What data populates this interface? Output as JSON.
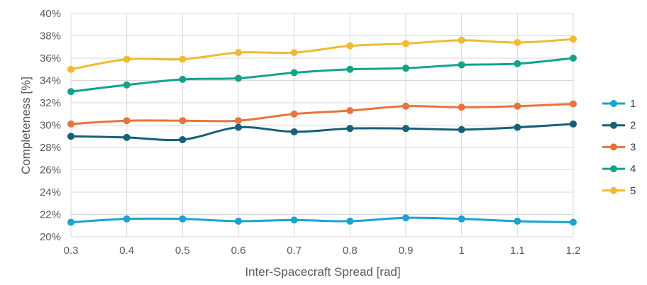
{
  "chart_data": {
    "type": "line",
    "title": "",
    "xlabel": "Inter-Spacecraft Spread [rad]",
    "ylabel": "Completeness [%]",
    "x": [
      0.3,
      0.4,
      0.5,
      0.6,
      0.7,
      0.8,
      0.9,
      1.0,
      1.1,
      1.2
    ],
    "x_tick_labels": [
      "0.3",
      "0.4",
      "0.5",
      "0.6",
      "0.7",
      "0.8",
      "0.9",
      "1",
      "1.1",
      "1.2"
    ],
    "ylim": [
      20,
      40
    ],
    "y_ticks": [
      20,
      22,
      24,
      26,
      28,
      30,
      32,
      34,
      36,
      38,
      40
    ],
    "y_tick_labels": [
      "20%",
      "22%",
      "24%",
      "26%",
      "28%",
      "30%",
      "32%",
      "34%",
      "36%",
      "38%",
      "40%"
    ],
    "grid": true,
    "legend_position": "right",
    "series": [
      {
        "name": "1",
        "color": "#1AA3D4",
        "values": [
          21.3,
          21.6,
          21.6,
          21.4,
          21.5,
          21.4,
          21.7,
          21.6,
          21.4,
          21.3
        ]
      },
      {
        "name": "2",
        "color": "#15607A",
        "values": [
          29.0,
          28.9,
          28.7,
          29.8,
          29.4,
          29.7,
          29.7,
          29.6,
          29.8,
          30.1
        ]
      },
      {
        "name": "3",
        "color": "#E8743B",
        "values": [
          30.1,
          30.4,
          30.4,
          30.4,
          31.0,
          31.3,
          31.7,
          31.6,
          31.7,
          31.9
        ]
      },
      {
        "name": "4",
        "color": "#13A38B",
        "values": [
          33.0,
          33.6,
          34.1,
          34.2,
          34.7,
          35.0,
          35.1,
          35.4,
          35.5,
          36.0
        ]
      },
      {
        "name": "5",
        "color": "#F1B934",
        "values": [
          35.0,
          35.9,
          35.9,
          36.5,
          36.5,
          37.1,
          37.3,
          37.6,
          37.4,
          37.7
        ]
      }
    ]
  }
}
